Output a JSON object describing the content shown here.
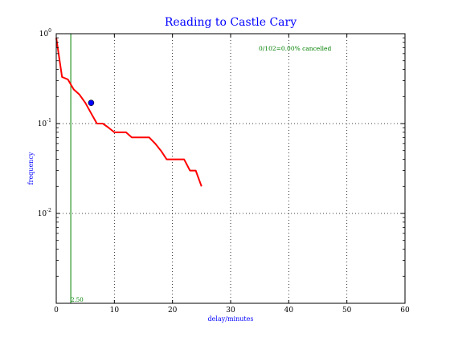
{
  "chart_data": {
    "type": "line",
    "title": "Reading to Castle Cary",
    "xlabel": "delay/minutes",
    "ylabel": "frequency",
    "xlim": [
      0,
      60
    ],
    "ylim": [
      0.001,
      1
    ],
    "yscale": "log",
    "grid": true,
    "x_ticks": [
      0,
      10,
      20,
      30,
      40,
      50,
      60
    ],
    "x_tick_labels": [
      "0",
      "10",
      "20",
      "30",
      "40",
      "50",
      "60"
    ],
    "y_ticks": [
      1,
      0.1,
      0.01
    ],
    "y_tick_labels": [
      {
        "base": "10",
        "exp": "0"
      },
      {
        "base": "10",
        "exp": "-1"
      },
      {
        "base": "10",
        "exp": "-2"
      }
    ],
    "annotation": "0/102=0.00% cancelled",
    "vline": {
      "x": 2.5,
      "label": "2.50",
      "color": "#008000"
    },
    "series": [
      {
        "color": "#ff0000",
        "x": [
          0,
          1,
          2,
          3,
          4,
          5,
          6,
          7,
          8,
          9,
          10,
          11,
          12,
          13,
          14,
          15,
          16,
          17,
          18,
          19,
          20,
          21,
          22,
          23,
          24,
          25
        ],
        "y": [
          0.9,
          0.33,
          0.31,
          0.24,
          0.21,
          0.17,
          0.13,
          0.1,
          0.1,
          0.09,
          0.08,
          0.08,
          0.08,
          0.07,
          0.07,
          0.07,
          0.07,
          0.06,
          0.05,
          0.04,
          0.04,
          0.04,
          0.04,
          0.03,
          0.03,
          0.02
        ]
      }
    ],
    "markers": [
      {
        "x": 6,
        "y": 0.17,
        "color": "#0000ff"
      }
    ]
  }
}
